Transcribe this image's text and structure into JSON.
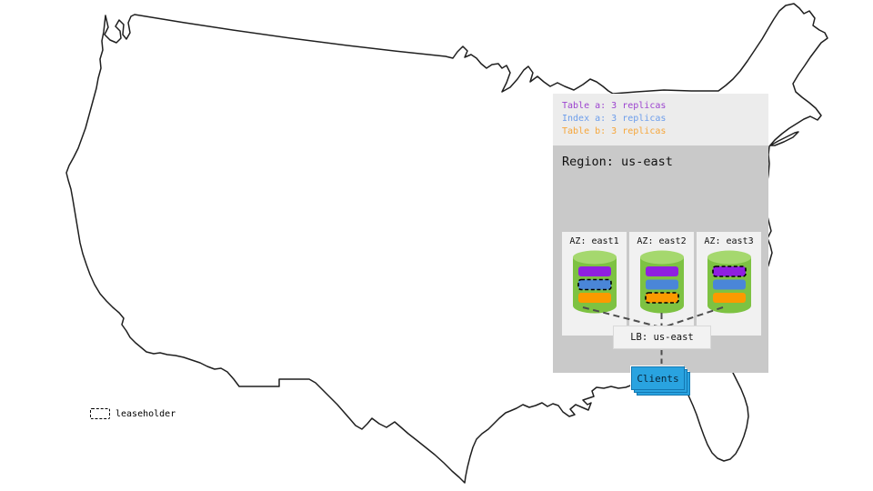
{
  "legend": {
    "items": [
      {
        "label": "Table a: 3 replicas",
        "key": "table_a",
        "color": "#9c44cf"
      },
      {
        "label": "Index a: 3 replicas",
        "key": "index_a",
        "color": "#6d9eeb"
      },
      {
        "label": "Table b: 3 replicas",
        "key": "table_b",
        "color": "#f6a63a"
      }
    ]
  },
  "region": {
    "title": "Region: us-east",
    "azs": [
      {
        "label": "AZ: east1",
        "bars": [
          {
            "type": "table_a",
            "leaseholder": false
          },
          {
            "type": "index_a",
            "leaseholder": true
          },
          {
            "type": "table_b",
            "leaseholder": false
          }
        ]
      },
      {
        "label": "AZ: east2",
        "bars": [
          {
            "type": "table_a",
            "leaseholder": false
          },
          {
            "type": "index_a",
            "leaseholder": false
          },
          {
            "type": "table_b",
            "leaseholder": true
          }
        ]
      },
      {
        "label": "AZ: east3",
        "bars": [
          {
            "type": "table_a",
            "leaseholder": true
          },
          {
            "type": "index_a",
            "leaseholder": false
          },
          {
            "type": "table_b",
            "leaseholder": false
          }
        ]
      }
    ],
    "lb_label": "LB: us-east",
    "clients_label": "Clients"
  },
  "leaseholder_key": {
    "label": "leaseholder"
  },
  "colors": {
    "bar_table_a": "#8f1fe0",
    "bar_index_a": "#4a86d8",
    "bar_table_b": "#fb9a00",
    "cylinder_body": "#7dc242",
    "cylinder_top": "#a5d86e",
    "clients_blue": "#29a3e0",
    "connector_gray": "#4d4d4d",
    "map_stroke": "#1f1f1f",
    "panel_legend_bg": "#ececec",
    "panel_region_bg": "#c9c9c9",
    "az_bg": "#f1f1f1"
  }
}
